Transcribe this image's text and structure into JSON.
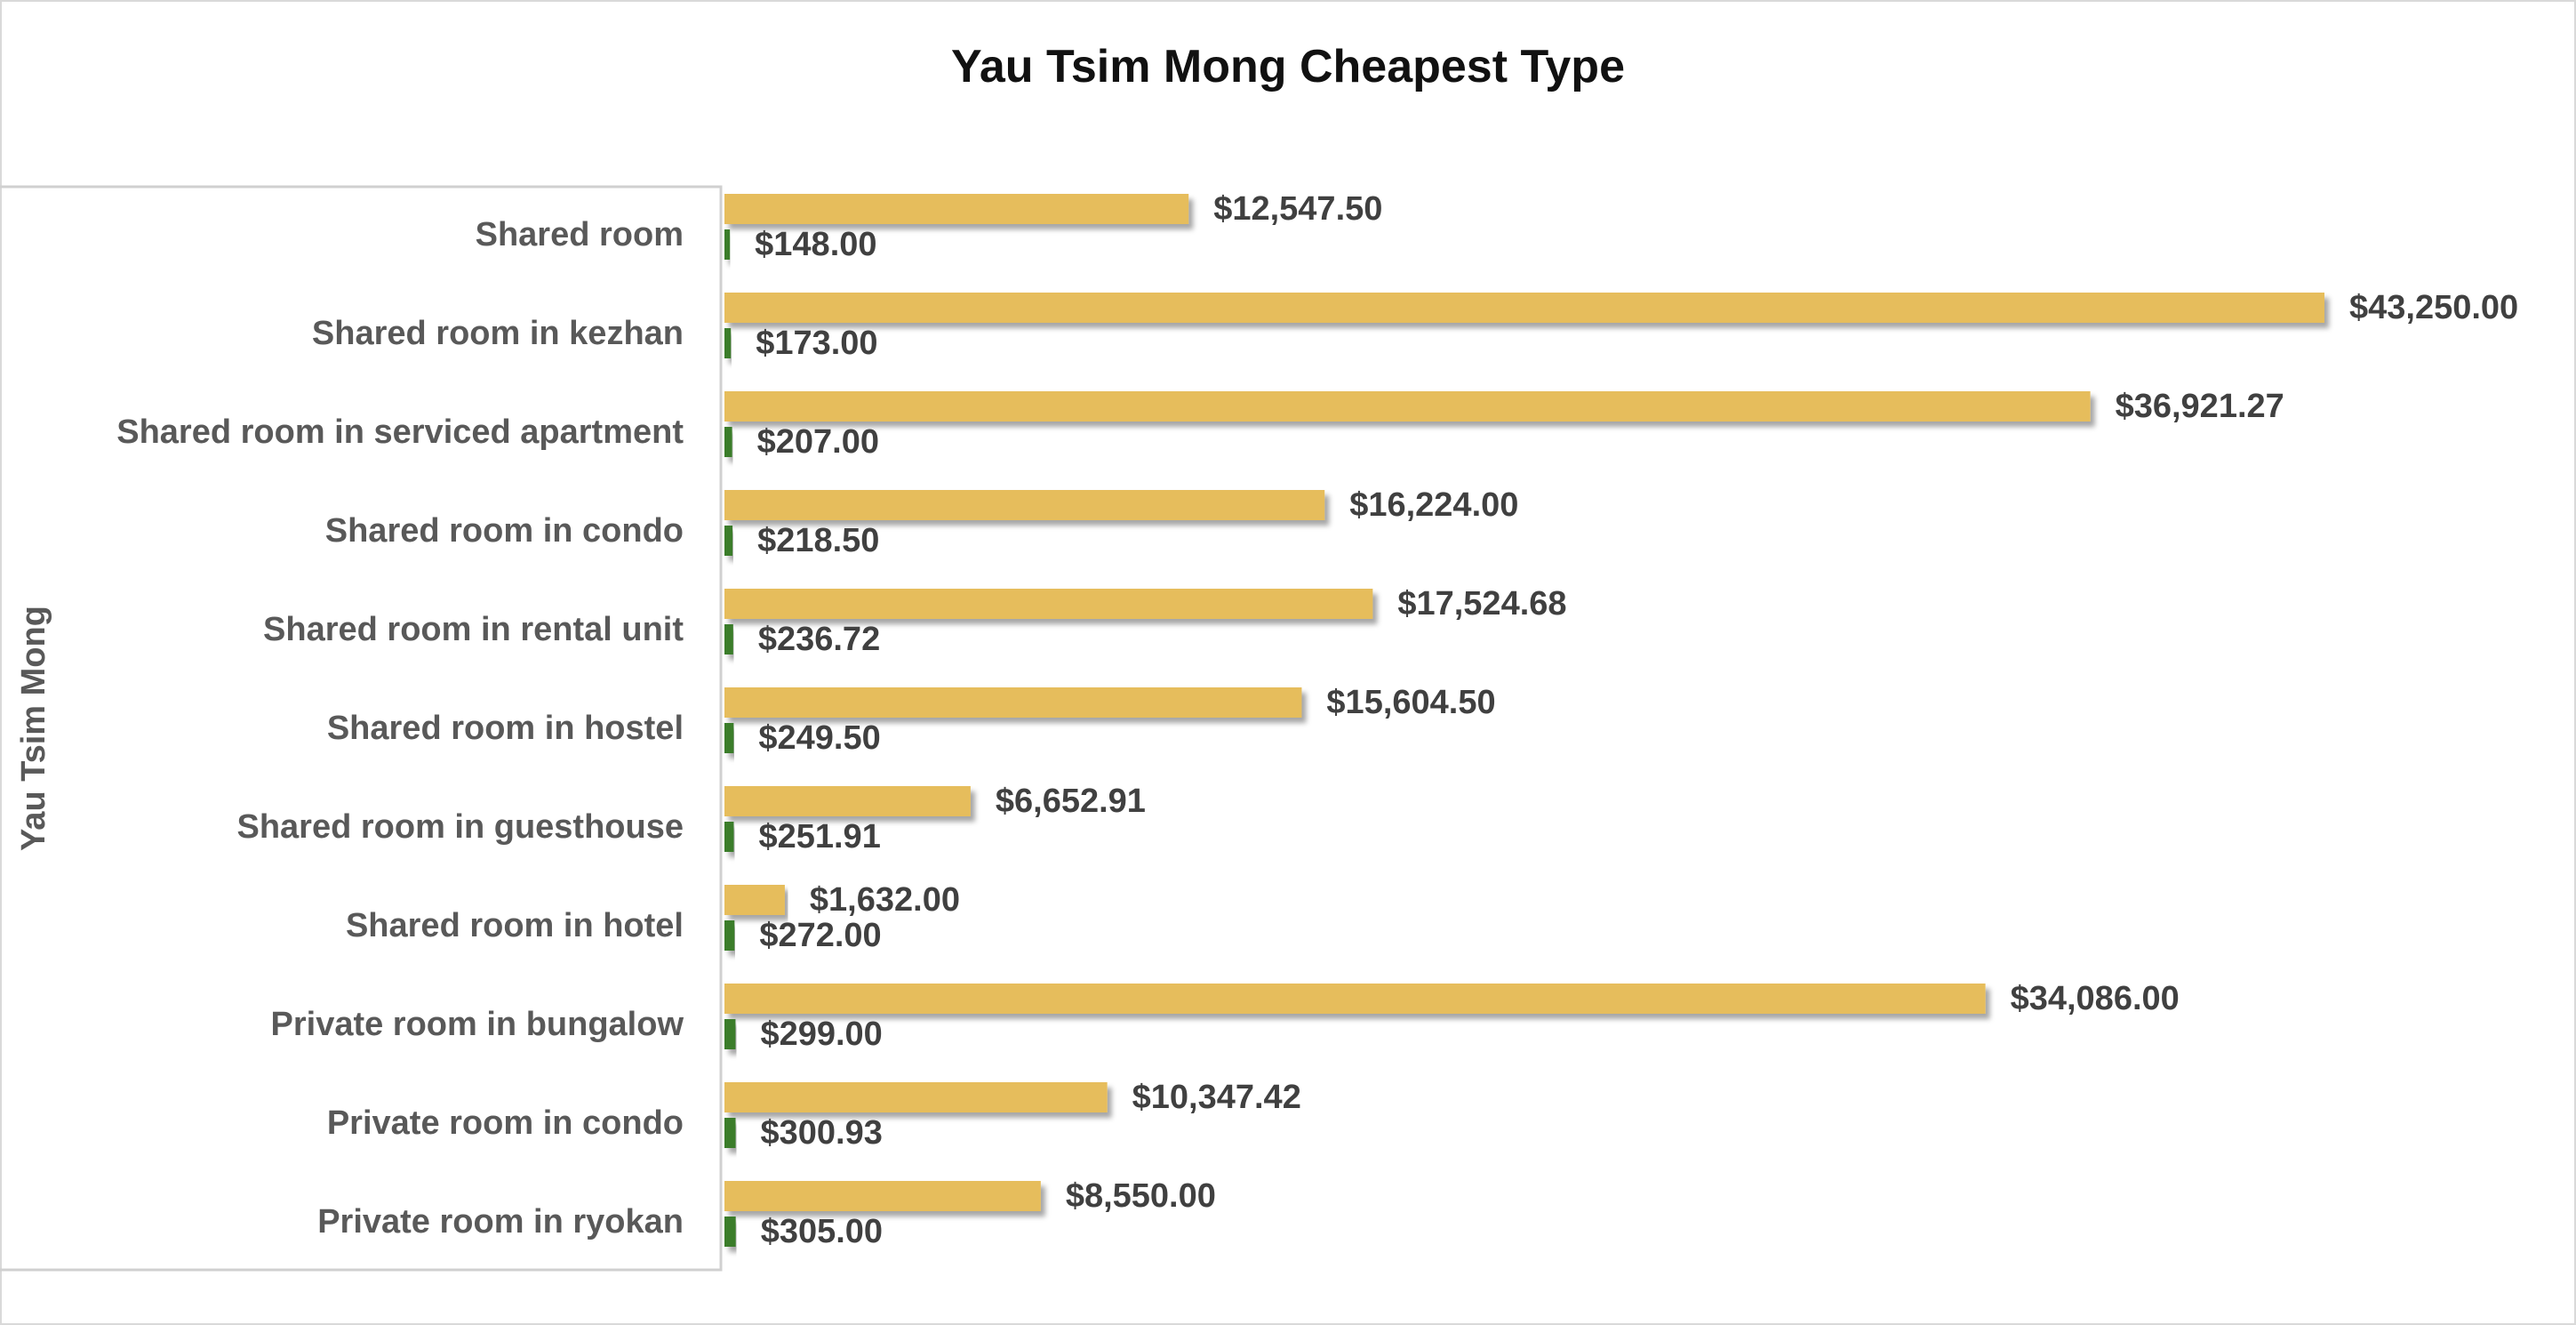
{
  "chart_data": {
    "type": "bar",
    "orientation": "horizontal",
    "title": "Yau Tsim Mong  Cheapest Type",
    "group_label": "Yau Tsim Mong",
    "categories": [
      "Shared room",
      "Shared room in kezhan",
      "Shared room in serviced apartment",
      "Shared room in condo",
      "Shared room in rental unit",
      "Shared room in hostel",
      "Shared room in guesthouse",
      "Shared room in hotel",
      "Private room in bungalow",
      "Private room in condo",
      "Private room in ryokan"
    ],
    "series": [
      {
        "color": "#E6BD5C",
        "values": [
          12547.5,
          43250.0,
          36921.27,
          16224.0,
          17524.68,
          15604.5,
          6652.91,
          1632.0,
          34086.0,
          10347.42,
          8550.0
        ],
        "labels": [
          "$12,547.50",
          "$43,250.00",
          "$36,921.27",
          "$16,224.00",
          "$17,524.68",
          "$15,604.50",
          "$6,652.91",
          "$1,632.00",
          "$34,086.00",
          "$10,347.42",
          "$8,550.00"
        ]
      },
      {
        "color": "#3A7D2C",
        "values": [
          148.0,
          173.0,
          207.0,
          218.5,
          236.72,
          249.5,
          251.91,
          272.0,
          299.0,
          300.93,
          305.0
        ],
        "labels": [
          "$148.00",
          "$173.00",
          "$207.00",
          "$218.50",
          "$236.72",
          "$249.50",
          "$251.91",
          "$272.00",
          "$299.00",
          "$300.93",
          "$305.00"
        ]
      }
    ],
    "xlim": [
      0,
      43250
    ],
    "grid": false,
    "legend": "none"
  }
}
